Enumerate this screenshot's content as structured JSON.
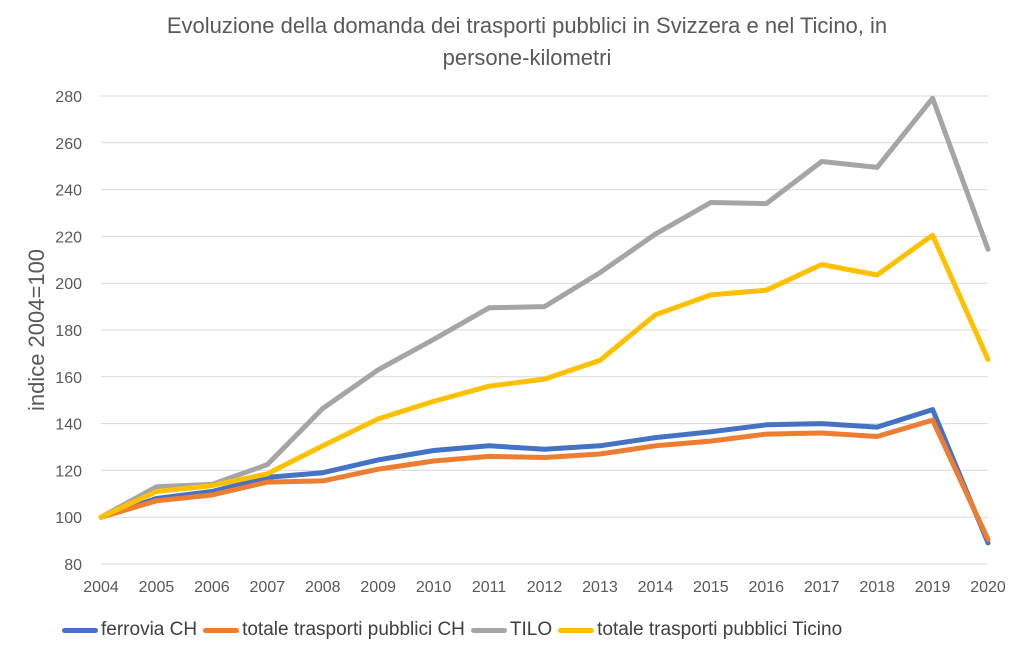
{
  "chart_data": {
    "type": "line",
    "title_line1": "Evoluzione della domanda dei trasporti pubblici in Svizzera e nel Ticino, in",
    "title_line2": "persone-kilometri",
    "xlabel": "",
    "ylabel": "indice 2004=100",
    "ylim": [
      80,
      280
    ],
    "ytick_step": 20,
    "grid": true,
    "legend_position": "bottom",
    "x": [
      "2004",
      "2005",
      "2006",
      "2007",
      "2008",
      "2009",
      "2010",
      "2011",
      "2012",
      "2013",
      "2014",
      "2015",
      "2016",
      "2017",
      "2018",
      "2019",
      "2020"
    ],
    "series": [
      {
        "name": "ferrovia CH",
        "color": "#4472C4",
        "values": [
          100,
          108,
          111,
          117,
          119,
          124.5,
          128.5,
          130.5,
          129,
          130.5,
          134,
          136.5,
          139.5,
          140,
          138.5,
          146,
          89
        ]
      },
      {
        "name": "totale trasporti pubblici CH",
        "color": "#ED7D31",
        "values": [
          100,
          107,
          109.5,
          115,
          115.5,
          120.5,
          124,
          126,
          125.5,
          127,
          130.5,
          132.5,
          135.5,
          136,
          134.5,
          141.5,
          90.5
        ]
      },
      {
        "name": "TILO",
        "color": "#A5A5A5",
        "values": [
          100,
          113,
          114,
          122.5,
          146.5,
          163,
          176,
          189.5,
          190,
          204.5,
          221,
          234.5,
          234,
          252,
          249.5,
          279,
          214.5
        ]
      },
      {
        "name": "totale trasporti pubblici Ticino",
        "color": "#FFC000",
        "values": [
          100,
          111,
          113.5,
          118.5,
          130.5,
          142,
          149.5,
          156,
          159,
          167,
          186.5,
          195,
          197,
          208,
          203.5,
          220.5,
          167.5
        ]
      }
    ]
  }
}
